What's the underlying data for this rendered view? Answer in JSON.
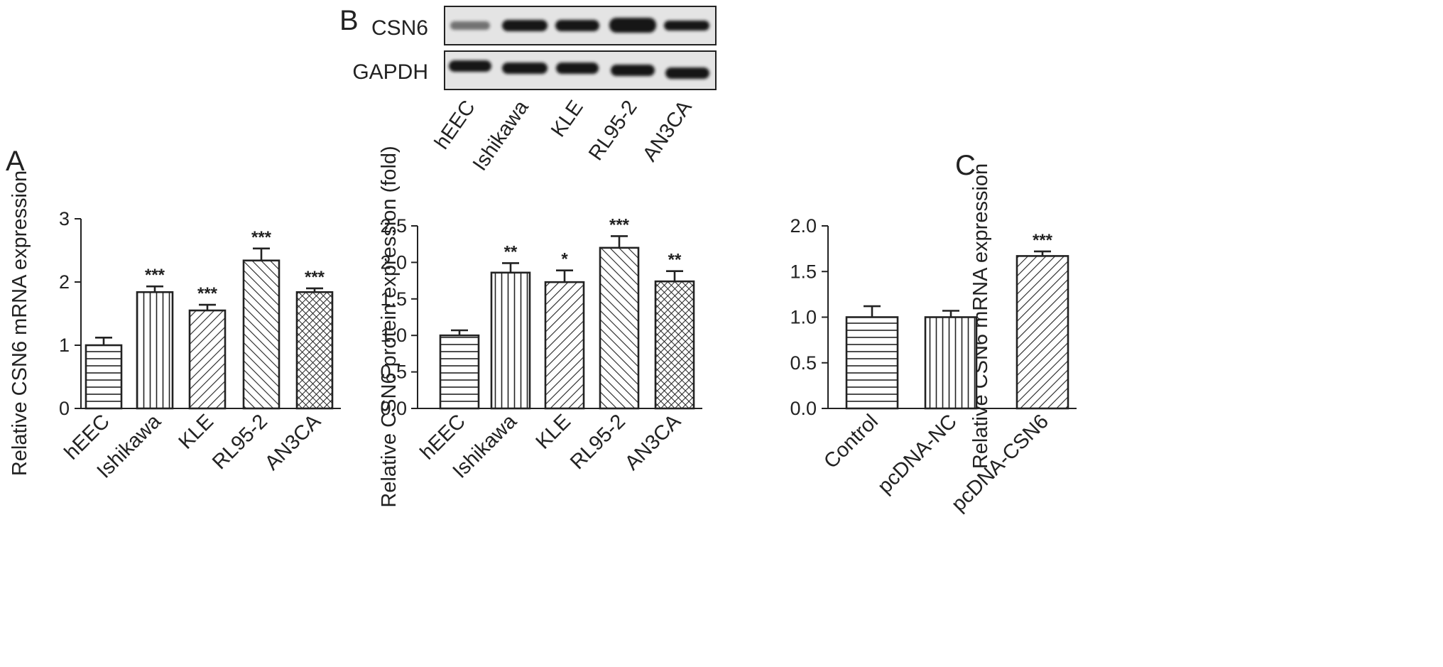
{
  "panels": {
    "a": {
      "letter": "A",
      "ylabel": "Relative CSN6 mRNA expression",
      "yticks": [
        "0",
        "1",
        "2",
        "3"
      ]
    },
    "b": {
      "letter": "B",
      "blot_rows": [
        "CSN6",
        "GAPDH"
      ],
      "blot_lanes": [
        "hEEC",
        "Ishikawa",
        "KLE",
        "RL95-2",
        "AN3CA"
      ],
      "ylabel": "Relative CSN6 protein expression (fold)",
      "yticks": [
        "0.0",
        "0.5",
        "1.0",
        "1.5",
        "2.0",
        "2.5"
      ]
    },
    "c": {
      "letter": "C",
      "ylabel": "Relative CSN6 mRNA expression",
      "yticks": [
        "0.0",
        "0.5",
        "1.0",
        "1.5",
        "2.0"
      ]
    }
  },
  "chart_data": [
    {
      "type": "bar",
      "panel": "A",
      "categories": [
        "hEEC",
        "Ishikawa",
        "KLE",
        "RL95-2",
        "AN3CA"
      ],
      "values": [
        1.0,
        1.84,
        1.55,
        2.34,
        1.84
      ],
      "errors": [
        0.12,
        0.09,
        0.09,
        0.19,
        0.06
      ],
      "significance": [
        "",
        "***",
        "***",
        "***",
        "***"
      ],
      "patterns": [
        "hlines",
        "vlines",
        "diag-right",
        "diag-left",
        "crosshatch"
      ],
      "ylabel": "Relative CSN6 mRNA expression",
      "ylim": [
        0,
        3
      ],
      "grid": false
    },
    {
      "type": "bar",
      "panel": "B",
      "categories": [
        "hEEC",
        "Ishikawa",
        "KLE",
        "RL95-2",
        "AN3CA"
      ],
      "values": [
        1.0,
        1.86,
        1.73,
        2.2,
        1.74
      ],
      "errors": [
        0.07,
        0.13,
        0.16,
        0.16,
        0.14
      ],
      "significance": [
        "",
        "**",
        "*",
        "***",
        "**"
      ],
      "patterns": [
        "hlines",
        "vlines",
        "diag-right",
        "diag-left",
        "crosshatch"
      ],
      "ylabel": "Relative CSN6 protein expression (fold)",
      "ylim": [
        0,
        2.5
      ],
      "grid": false
    },
    {
      "type": "bar",
      "panel": "C",
      "categories": [
        "Control",
        "pcDNA-NC",
        "pcDNA-CSN6"
      ],
      "values": [
        1.0,
        1.0,
        1.67
      ],
      "errors": [
        0.12,
        0.07,
        0.05
      ],
      "significance": [
        "",
        "",
        "***"
      ],
      "patterns": [
        "hlines",
        "vlines",
        "diag-right"
      ],
      "ylabel": "Relative CSN6 mRNA expression",
      "ylim": [
        0,
        2.0
      ],
      "grid": false
    }
  ],
  "colors": {
    "ink": "#222222",
    "band": "#141414",
    "blot_bg": "#e4e4e4"
  }
}
